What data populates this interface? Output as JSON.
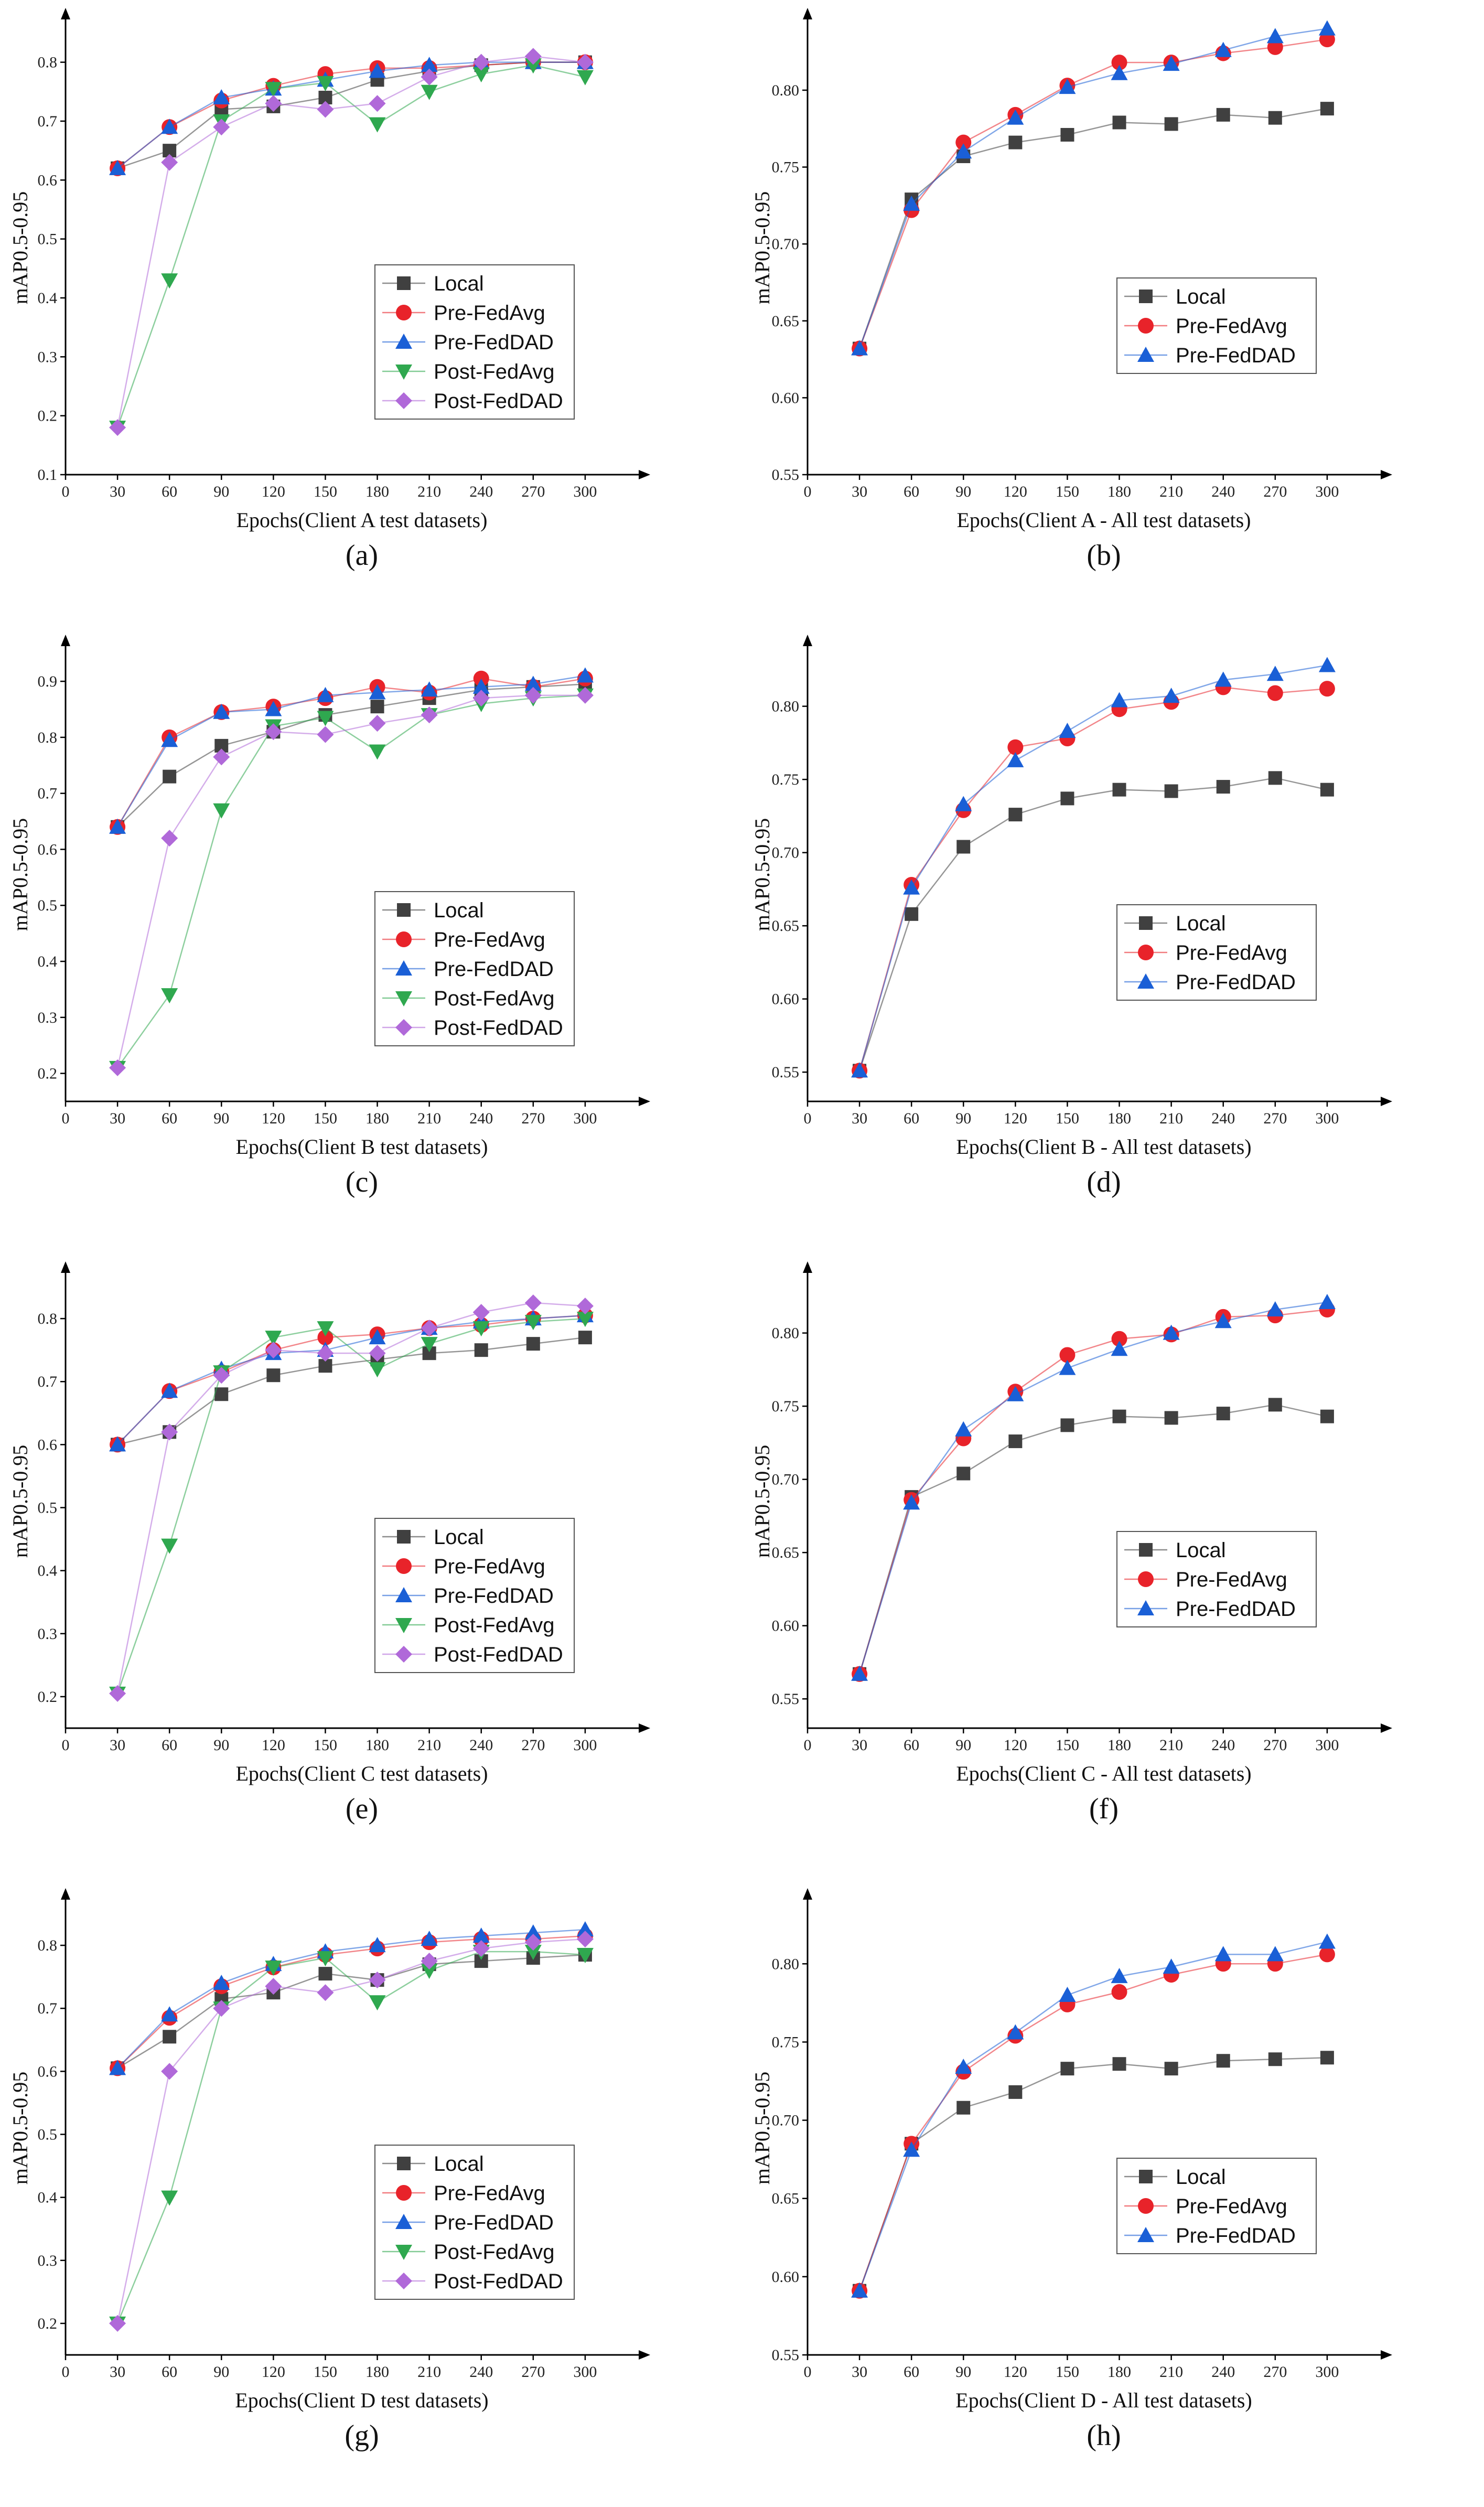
{
  "chart_data": [
    {
      "panel": "(a)",
      "type": "line",
      "xlabel": "Epochs(Client A test datasets)",
      "ylabel": "mAP0.5-0.95",
      "x": [
        30,
        60,
        90,
        120,
        150,
        180,
        210,
        240,
        270,
        300
      ],
      "xticks": [
        0,
        30,
        60,
        90,
        120,
        150,
        180,
        210,
        240,
        270,
        300
      ],
      "yticks": [
        0.1,
        0.2,
        0.3,
        0.4,
        0.5,
        0.6,
        0.7,
        0.8
      ],
      "ylim": [
        0.1,
        0.87
      ],
      "xlim": [
        0,
        330
      ],
      "legend_position": "right",
      "series": [
        {
          "name": "Local",
          "color": "#404040",
          "marker": "square",
          "values": [
            0.62,
            0.65,
            0.72,
            0.725,
            0.74,
            0.77,
            0.785,
            0.795,
            0.8,
            0.8
          ]
        },
        {
          "name": "Pre-FedAvg",
          "color": "#e8232a",
          "marker": "circle",
          "values": [
            0.62,
            0.69,
            0.735,
            0.76,
            0.78,
            0.79,
            0.79,
            0.795,
            0.8,
            0.8
          ]
        },
        {
          "name": "Pre-FedDAD",
          "color": "#1a5fd6",
          "marker": "triangle-up",
          "values": [
            0.62,
            0.69,
            0.74,
            0.755,
            0.77,
            0.785,
            0.795,
            0.8,
            0.8,
            0.8
          ]
        },
        {
          "name": "Post-FedAvg",
          "color": "#2fa84f",
          "marker": "triangle-down",
          "values": [
            0.18,
            0.43,
            0.7,
            0.755,
            0.765,
            0.695,
            0.75,
            0.78,
            0.795,
            0.775
          ]
        },
        {
          "name": "Post-FedDAD",
          "color": "#b069d9",
          "marker": "diamond",
          "values": [
            0.18,
            0.63,
            0.69,
            0.73,
            0.72,
            0.73,
            0.775,
            0.8,
            0.81,
            0.8
          ]
        }
      ]
    },
    {
      "panel": "(b)",
      "type": "line",
      "xlabel": "Epochs(Client A - All test datasets)",
      "ylabel": "mAP0.5-0.95",
      "x": [
        30,
        60,
        90,
        120,
        150,
        180,
        210,
        240,
        270,
        300
      ],
      "xticks": [
        0,
        30,
        60,
        90,
        120,
        150,
        180,
        210,
        240,
        270,
        300
      ],
      "yticks": [
        0.55,
        0.6,
        0.65,
        0.7,
        0.75,
        0.8
      ],
      "ylim": [
        0.55,
        0.845
      ],
      "xlim": [
        0,
        330
      ],
      "legend_position": "right",
      "series": [
        {
          "name": "Local",
          "color": "#404040",
          "marker": "square",
          "values": [
            0.632,
            0.729,
            0.757,
            0.766,
            0.771,
            0.779,
            0.778,
            0.784,
            0.782,
            0.788
          ]
        },
        {
          "name": "Pre-FedAvg",
          "color": "#e8232a",
          "marker": "circle",
          "values": [
            0.632,
            0.722,
            0.766,
            0.784,
            0.803,
            0.818,
            0.818,
            0.824,
            0.828,
            0.833
          ]
        },
        {
          "name": "Pre-FedDAD",
          "color": "#1a5fd6",
          "marker": "triangle-up",
          "values": [
            0.632,
            0.726,
            0.76,
            0.782,
            0.802,
            0.811,
            0.817,
            0.826,
            0.835,
            0.84
          ]
        }
      ]
    },
    {
      "panel": "(c)",
      "type": "line",
      "xlabel": "Epochs(Client B test datasets)",
      "ylabel": "mAP0.5-0.95",
      "x": [
        30,
        60,
        90,
        120,
        150,
        180,
        210,
        240,
        270,
        300
      ],
      "xticks": [
        0,
        30,
        60,
        90,
        120,
        150,
        180,
        210,
        240,
        270,
        300
      ],
      "yticks": [
        0.2,
        0.3,
        0.4,
        0.5,
        0.6,
        0.7,
        0.8,
        0.9
      ],
      "ylim": [
        0.15,
        0.96
      ],
      "xlim": [
        0,
        330
      ],
      "legend_position": "right",
      "series": [
        {
          "name": "Local",
          "color": "#404040",
          "marker": "square",
          "values": [
            0.64,
            0.73,
            0.785,
            0.81,
            0.84,
            0.855,
            0.87,
            0.885,
            0.89,
            0.895
          ]
        },
        {
          "name": "Pre-FedAvg",
          "color": "#e8232a",
          "marker": "circle",
          "values": [
            0.64,
            0.8,
            0.845,
            0.855,
            0.87,
            0.89,
            0.88,
            0.905,
            0.89,
            0.905
          ]
        },
        {
          "name": "Pre-FedDAD",
          "color": "#1a5fd6",
          "marker": "triangle-up",
          "values": [
            0.64,
            0.795,
            0.845,
            0.85,
            0.875,
            0.88,
            0.885,
            0.89,
            0.895,
            0.91
          ]
        },
        {
          "name": "Post-FedAvg",
          "color": "#2fa84f",
          "marker": "triangle-down",
          "values": [
            0.21,
            0.34,
            0.67,
            0.82,
            0.835,
            0.775,
            0.84,
            0.86,
            0.87,
            0.875
          ]
        },
        {
          "name": "Post-FedDAD",
          "color": "#b069d9",
          "marker": "diamond",
          "values": [
            0.21,
            0.62,
            0.765,
            0.81,
            0.805,
            0.825,
            0.84,
            0.87,
            0.875,
            0.875
          ]
        }
      ]
    },
    {
      "panel": "(d)",
      "type": "line",
      "xlabel": "Epochs(Client B - All test datasets)",
      "ylabel": "mAP0.5-0.95",
      "x": [
        30,
        60,
        90,
        120,
        150,
        180,
        210,
        240,
        270,
        300
      ],
      "xticks": [
        0,
        30,
        60,
        90,
        120,
        150,
        180,
        210,
        240,
        270,
        300
      ],
      "yticks": [
        0.55,
        0.6,
        0.65,
        0.7,
        0.75,
        0.8
      ],
      "ylim": [
        0.53,
        0.84
      ],
      "xlim": [
        0,
        330
      ],
      "legend_position": "right",
      "series": [
        {
          "name": "Local",
          "color": "#404040",
          "marker": "square",
          "values": [
            0.551,
            0.658,
            0.704,
            0.726,
            0.737,
            0.743,
            0.742,
            0.745,
            0.751,
            0.743
          ]
        },
        {
          "name": "Pre-FedAvg",
          "color": "#e8232a",
          "marker": "circle",
          "values": [
            0.551,
            0.678,
            0.729,
            0.772,
            0.778,
            0.798,
            0.803,
            0.813,
            0.809,
            0.812
          ]
        },
        {
          "name": "Pre-FedDAD",
          "color": "#1a5fd6",
          "marker": "triangle-up",
          "values": [
            0.551,
            0.676,
            0.733,
            0.763,
            0.783,
            0.804,
            0.807,
            0.818,
            0.822,
            0.828
          ]
        }
      ]
    },
    {
      "panel": "(e)",
      "type": "line",
      "xlabel": "Epochs(Client C test datasets)",
      "ylabel": "mAP0.5-0.95",
      "x": [
        30,
        60,
        90,
        120,
        150,
        180,
        210,
        240,
        270,
        300
      ],
      "xticks": [
        0,
        30,
        60,
        90,
        120,
        150,
        180,
        210,
        240,
        270,
        300
      ],
      "yticks": [
        0.2,
        0.3,
        0.4,
        0.5,
        0.6,
        0.7,
        0.8
      ],
      "ylim": [
        0.15,
        0.87
      ],
      "xlim": [
        0,
        330
      ],
      "legend_position": "right",
      "series": [
        {
          "name": "Local",
          "color": "#404040",
          "marker": "square",
          "values": [
            0.6,
            0.62,
            0.68,
            0.71,
            0.725,
            0.735,
            0.745,
            0.75,
            0.76,
            0.77
          ]
        },
        {
          "name": "Pre-FedAvg",
          "color": "#e8232a",
          "marker": "circle",
          "values": [
            0.6,
            0.685,
            0.715,
            0.75,
            0.77,
            0.775,
            0.785,
            0.79,
            0.8,
            0.805
          ]
        },
        {
          "name": "Pre-FedDAD",
          "color": "#1a5fd6",
          "marker": "triangle-up",
          "values": [
            0.6,
            0.685,
            0.72,
            0.745,
            0.75,
            0.77,
            0.785,
            0.795,
            0.8,
            0.805
          ]
        },
        {
          "name": "Post-FedAvg",
          "color": "#2fa84f",
          "marker": "triangle-down",
          "values": [
            0.205,
            0.44,
            0.715,
            0.77,
            0.785,
            0.72,
            0.76,
            0.785,
            0.795,
            0.8
          ]
        },
        {
          "name": "Post-FedDAD",
          "color": "#b069d9",
          "marker": "diamond",
          "values": [
            0.205,
            0.62,
            0.71,
            0.75,
            0.745,
            0.745,
            0.785,
            0.81,
            0.825,
            0.82
          ]
        }
      ]
    },
    {
      "panel": "(f)",
      "type": "line",
      "xlabel": "Epochs(Client C - All test datasets)",
      "ylabel": "mAP0.5-0.95",
      "x": [
        30,
        60,
        90,
        120,
        150,
        180,
        210,
        240,
        270,
        300
      ],
      "xticks": [
        0,
        30,
        60,
        90,
        120,
        150,
        180,
        210,
        240,
        270,
        300
      ],
      "yticks": [
        0.55,
        0.6,
        0.65,
        0.7,
        0.75,
        0.8
      ],
      "ylim": [
        0.53,
        0.84
      ],
      "xlim": [
        0,
        330
      ],
      "legend_position": "right",
      "series": [
        {
          "name": "Local",
          "color": "#404040",
          "marker": "square",
          "values": [
            0.567,
            0.688,
            0.704,
            0.726,
            0.737,
            0.743,
            0.742,
            0.745,
            0.751,
            0.743
          ]
        },
        {
          "name": "Pre-FedAvg",
          "color": "#e8232a",
          "marker": "circle",
          "values": [
            0.567,
            0.686,
            0.728,
            0.76,
            0.785,
            0.796,
            0.799,
            0.811,
            0.812,
            0.816
          ]
        },
        {
          "name": "Pre-FedDAD",
          "color": "#1a5fd6",
          "marker": "triangle-up",
          "values": [
            0.567,
            0.684,
            0.734,
            0.758,
            0.776,
            0.789,
            0.8,
            0.808,
            0.816,
            0.821
          ]
        }
      ]
    },
    {
      "panel": "(g)",
      "type": "line",
      "xlabel": "Epochs(Client D test datasets)",
      "ylabel": "mAP0.5-0.95",
      "x": [
        30,
        60,
        90,
        120,
        150,
        180,
        210,
        240,
        270,
        300
      ],
      "xticks": [
        0,
        30,
        60,
        90,
        120,
        150,
        180,
        210,
        240,
        270,
        300
      ],
      "yticks": [
        0.2,
        0.3,
        0.4,
        0.5,
        0.6,
        0.7,
        0.8
      ],
      "ylim": [
        0.15,
        0.87
      ],
      "xlim": [
        0,
        330
      ],
      "legend_position": "right",
      "series": [
        {
          "name": "Local",
          "color": "#404040",
          "marker": "square",
          "values": [
            0.605,
            0.655,
            0.715,
            0.725,
            0.755,
            0.745,
            0.77,
            0.775,
            0.78,
            0.785
          ]
        },
        {
          "name": "Pre-FedAvg",
          "color": "#e8232a",
          "marker": "circle",
          "values": [
            0.605,
            0.685,
            0.735,
            0.765,
            0.785,
            0.795,
            0.805,
            0.81,
            0.81,
            0.815
          ]
        },
        {
          "name": "Pre-FedDAD",
          "color": "#1a5fd6",
          "marker": "triangle-up",
          "values": [
            0.605,
            0.69,
            0.74,
            0.77,
            0.79,
            0.8,
            0.81,
            0.815,
            0.82,
            0.825
          ]
        },
        {
          "name": "Post-FedAvg",
          "color": "#2fa84f",
          "marker": "triangle-down",
          "values": [
            0.2,
            0.4,
            0.7,
            0.765,
            0.78,
            0.71,
            0.76,
            0.79,
            0.79,
            0.785
          ]
        },
        {
          "name": "Post-FedDAD",
          "color": "#b069d9",
          "marker": "diamond",
          "values": [
            0.2,
            0.6,
            0.7,
            0.735,
            0.725,
            0.745,
            0.775,
            0.795,
            0.805,
            0.81
          ]
        }
      ]
    },
    {
      "panel": "(h)",
      "type": "line",
      "xlabel": "Epochs(Client D - All test datasets)",
      "ylabel": "mAP0.5-0.95",
      "x": [
        30,
        60,
        90,
        120,
        150,
        180,
        210,
        240,
        270,
        300
      ],
      "xticks": [
        0,
        30,
        60,
        90,
        120,
        150,
        180,
        210,
        240,
        270,
        300
      ],
      "yticks": [
        0.55,
        0.6,
        0.65,
        0.7,
        0.75,
        0.8
      ],
      "ylim": [
        0.55,
        0.84
      ],
      "xlim": [
        0,
        330
      ],
      "legend_position": "right",
      "series": [
        {
          "name": "Local",
          "color": "#404040",
          "marker": "square",
          "values": [
            0.591,
            0.685,
            0.708,
            0.718,
            0.733,
            0.736,
            0.733,
            0.738,
            0.739,
            0.74
          ]
        },
        {
          "name": "Pre-FedAvg",
          "color": "#e8232a",
          "marker": "circle",
          "values": [
            0.591,
            0.685,
            0.731,
            0.754,
            0.774,
            0.782,
            0.793,
            0.8,
            0.8,
            0.806
          ]
        },
        {
          "name": "Pre-FedDAD",
          "color": "#1a5fd6",
          "marker": "triangle-up",
          "values": [
            0.591,
            0.681,
            0.734,
            0.756,
            0.78,
            0.792,
            0.798,
            0.806,
            0.806,
            0.814
          ]
        }
      ]
    }
  ]
}
